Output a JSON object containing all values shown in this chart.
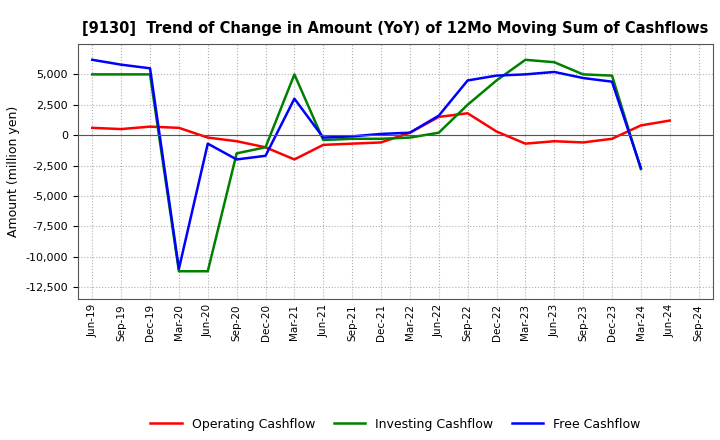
{
  "title": "[9130]  Trend of Change in Amount (YoY) of 12Mo Moving Sum of Cashflows",
  "ylabel": "Amount (million yen)",
  "x_labels": [
    "Jun-19",
    "Sep-19",
    "Dec-19",
    "Mar-20",
    "Jun-20",
    "Sep-20",
    "Dec-20",
    "Mar-21",
    "Jun-21",
    "Sep-21",
    "Dec-21",
    "Mar-22",
    "Jun-22",
    "Sep-22",
    "Dec-22",
    "Mar-23",
    "Jun-23",
    "Sep-23",
    "Dec-23",
    "Mar-24",
    "Jun-24",
    "Sep-24"
  ],
  "operating": [
    600,
    500,
    700,
    600,
    -200,
    -500,
    -1000,
    -2000,
    -800,
    -700,
    -600,
    200,
    1500,
    1800,
    300,
    -700,
    -500,
    -600,
    -300,
    800,
    1200,
    null
  ],
  "investing": [
    5000,
    5000,
    5000,
    -11200,
    -11200,
    -1500,
    -1000,
    5000,
    -400,
    -300,
    -300,
    -200,
    200,
    2500,
    4500,
    6200,
    6000,
    5000,
    4900,
    -2800,
    null,
    null
  ],
  "free": [
    6200,
    5800,
    5500,
    -11000,
    -700,
    -2000,
    -1700,
    3000,
    -200,
    -100,
    100,
    200,
    1600,
    4500,
    4900,
    5000,
    5200,
    4700,
    4400,
    -2700,
    null,
    null
  ],
  "ylim": [
    -13500,
    7500
  ],
  "yticks": [
    -12500,
    -10000,
    -7500,
    -5000,
    -2500,
    0,
    2500,
    5000
  ],
  "operating_color": "#ff0000",
  "investing_color": "#008000",
  "free_color": "#0000ff",
  "background_color": "#ffffff",
  "grid_color": "#b0b0b0"
}
